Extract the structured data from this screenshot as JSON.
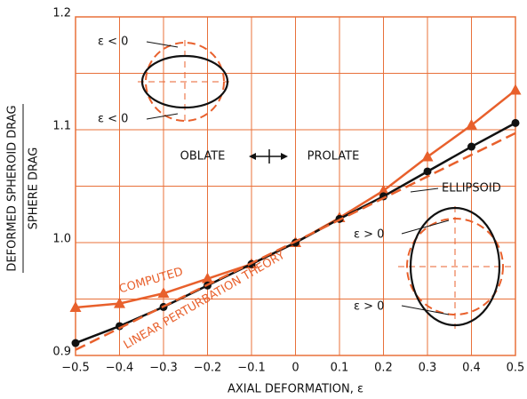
{
  "chart_data": {
    "type": "line",
    "x_label": "AXIAL DEFORMATION, ε",
    "y_label_numerator": "DEFORMED SPHEROID DRAG",
    "y_label_denominator": "SPHERE DRAG",
    "xlim": [
      -0.5,
      0.5
    ],
    "ylim": [
      0.9,
      1.2
    ],
    "xticks": [
      {
        "value": -0.5,
        "label": "−0.5"
      },
      {
        "value": -0.4,
        "label": "−0.4"
      },
      {
        "value": -0.3,
        "label": "−0.3"
      },
      {
        "value": -0.2,
        "label": "−0.2"
      },
      {
        "value": -0.1,
        "label": "−0.1"
      },
      0,
      0.1,
      0.2,
      0.3,
      0.4,
      0.5
    ],
    "yticks": [
      0.9,
      {
        "value": 1,
        "label": "1.0"
      },
      1.1,
      1.2
    ],
    "ygrid": [
      0.95,
      1.05,
      1.15
    ],
    "grid": true,
    "grid_color": "#e8703a",
    "series": [
      {
        "name": "COMPUTED",
        "color": "#e8602c",
        "marker": "triangle",
        "x": [
          -0.5,
          -0.4,
          -0.3,
          -0.2,
          -0.1,
          0,
          0.1,
          0.2,
          0.3,
          0.4,
          0.5
        ],
        "values": [
          0.9425,
          0.946,
          0.955,
          0.968,
          0.981,
          1.0,
          1.022,
          1.046,
          1.076,
          1.104,
          1.135
        ]
      },
      {
        "name": "ELLIPSOID",
        "color": "#111111",
        "marker": "circle",
        "x": [
          -0.5,
          -0.4,
          -0.3,
          -0.2,
          -0.1,
          0,
          0.1,
          0.2,
          0.3,
          0.4,
          0.5
        ],
        "values": [
          0.911,
          0.926,
          0.943,
          0.962,
          0.981,
          1.0,
          1.021,
          1.041,
          1.063,
          1.085,
          1.106
        ]
      },
      {
        "name": "LINEAR PERTURBATION THEORY",
        "color": "#e8602c",
        "dashed": true,
        "x": [
          -0.5,
          0.5
        ],
        "values": [
          0.905,
          1.097
        ]
      }
    ],
    "annotations": [
      "OBLATE",
      "PROLATE",
      "ε < 0",
      "ε < 0",
      "ε > 0",
      "ε > 0"
    ]
  }
}
